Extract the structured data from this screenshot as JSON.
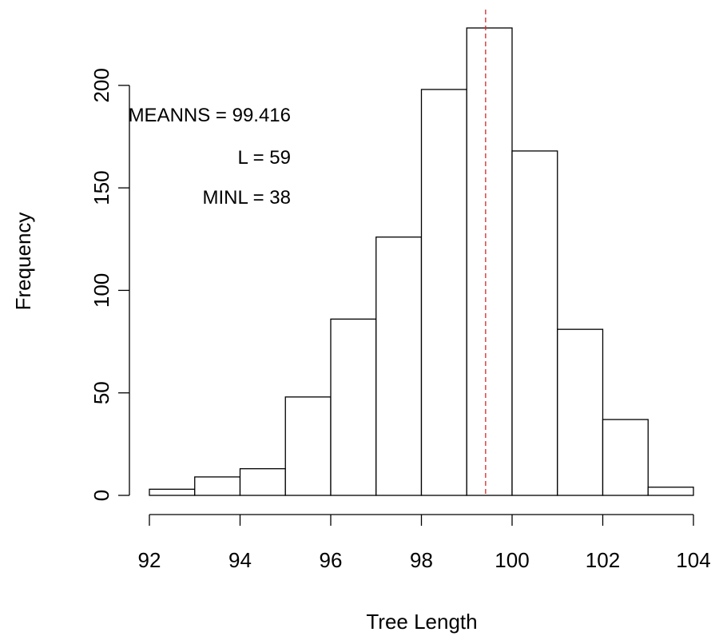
{
  "chart_data": {
    "type": "bar",
    "subtype": "histogram",
    "title": "",
    "xlabel": "Tree Length",
    "ylabel": "Frequency",
    "bins": [
      {
        "x0": 92,
        "x1": 93,
        "count": 3
      },
      {
        "x0": 93,
        "x1": 94,
        "count": 9
      },
      {
        "x0": 94,
        "x1": 95,
        "count": 13
      },
      {
        "x0": 95,
        "x1": 96,
        "count": 48
      },
      {
        "x0": 96,
        "x1": 97,
        "count": 86
      },
      {
        "x0": 97,
        "x1": 98,
        "count": 126
      },
      {
        "x0": 98,
        "x1": 99,
        "count": 198
      },
      {
        "x0": 99,
        "x1": 100,
        "count": 228
      },
      {
        "x0": 100,
        "x1": 101,
        "count": 168
      },
      {
        "x0": 101,
        "x1": 102,
        "count": 81
      },
      {
        "x0": 102,
        "x1": 103,
        "count": 37
      },
      {
        "x0": 103,
        "x1": 104,
        "count": 4
      }
    ],
    "xlim": [
      92,
      104
    ],
    "ylim": [
      0,
      228
    ],
    "xticks": [
      92,
      94,
      96,
      98,
      100,
      102,
      104
    ],
    "xtick_labels": [
      "92",
      "94",
      "96",
      "98",
      "100",
      "102",
      "104"
    ],
    "yticks": [
      0,
      50,
      100,
      150,
      200
    ],
    "ytick_labels": [
      "0",
      "50",
      "100",
      "150",
      "200"
    ],
    "vline": {
      "x": 99.416,
      "style": "dashed",
      "color": "#d62728"
    },
    "annotations": [
      "MEANNS = 99.416",
      "L = 59",
      "MINL = 38"
    ],
    "grid": false,
    "legend": "none"
  }
}
